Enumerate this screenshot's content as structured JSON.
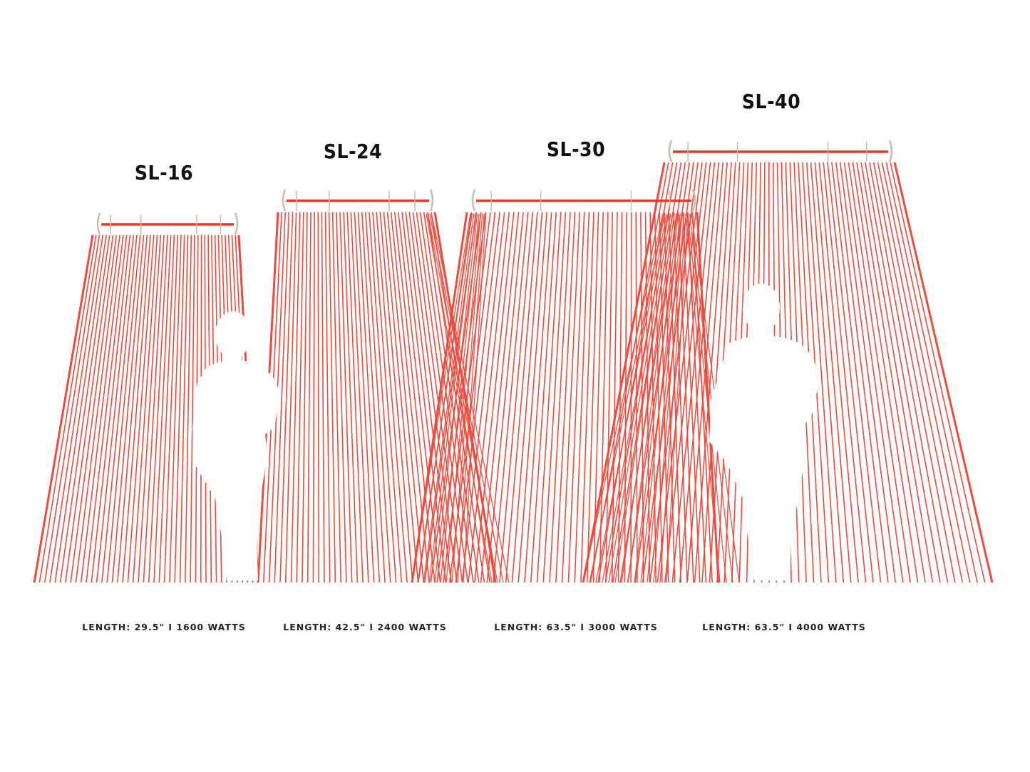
{
  "heaters": [
    {
      "model": "SL-16",
      "spec": "LENGTH: 29.5\" I 1600 WATTS"
    },
    {
      "model": "SL-24",
      "spec": "LENGTH: 42.5\" I 2400 WATTS"
    },
    {
      "model": "SL-30",
      "spec": "LENGTH: 63.5\" I 3000 WATTS"
    },
    {
      "model": "SL-40",
      "spec": "LENGTH: 63.5\" I 4000 WATTS"
    }
  ],
  "colors": {
    "beam": "#ef4a3c",
    "bar": "#e8392b",
    "bracket": "#c9bfa4",
    "silhouette": "#ffffff",
    "text": "#111111"
  }
}
